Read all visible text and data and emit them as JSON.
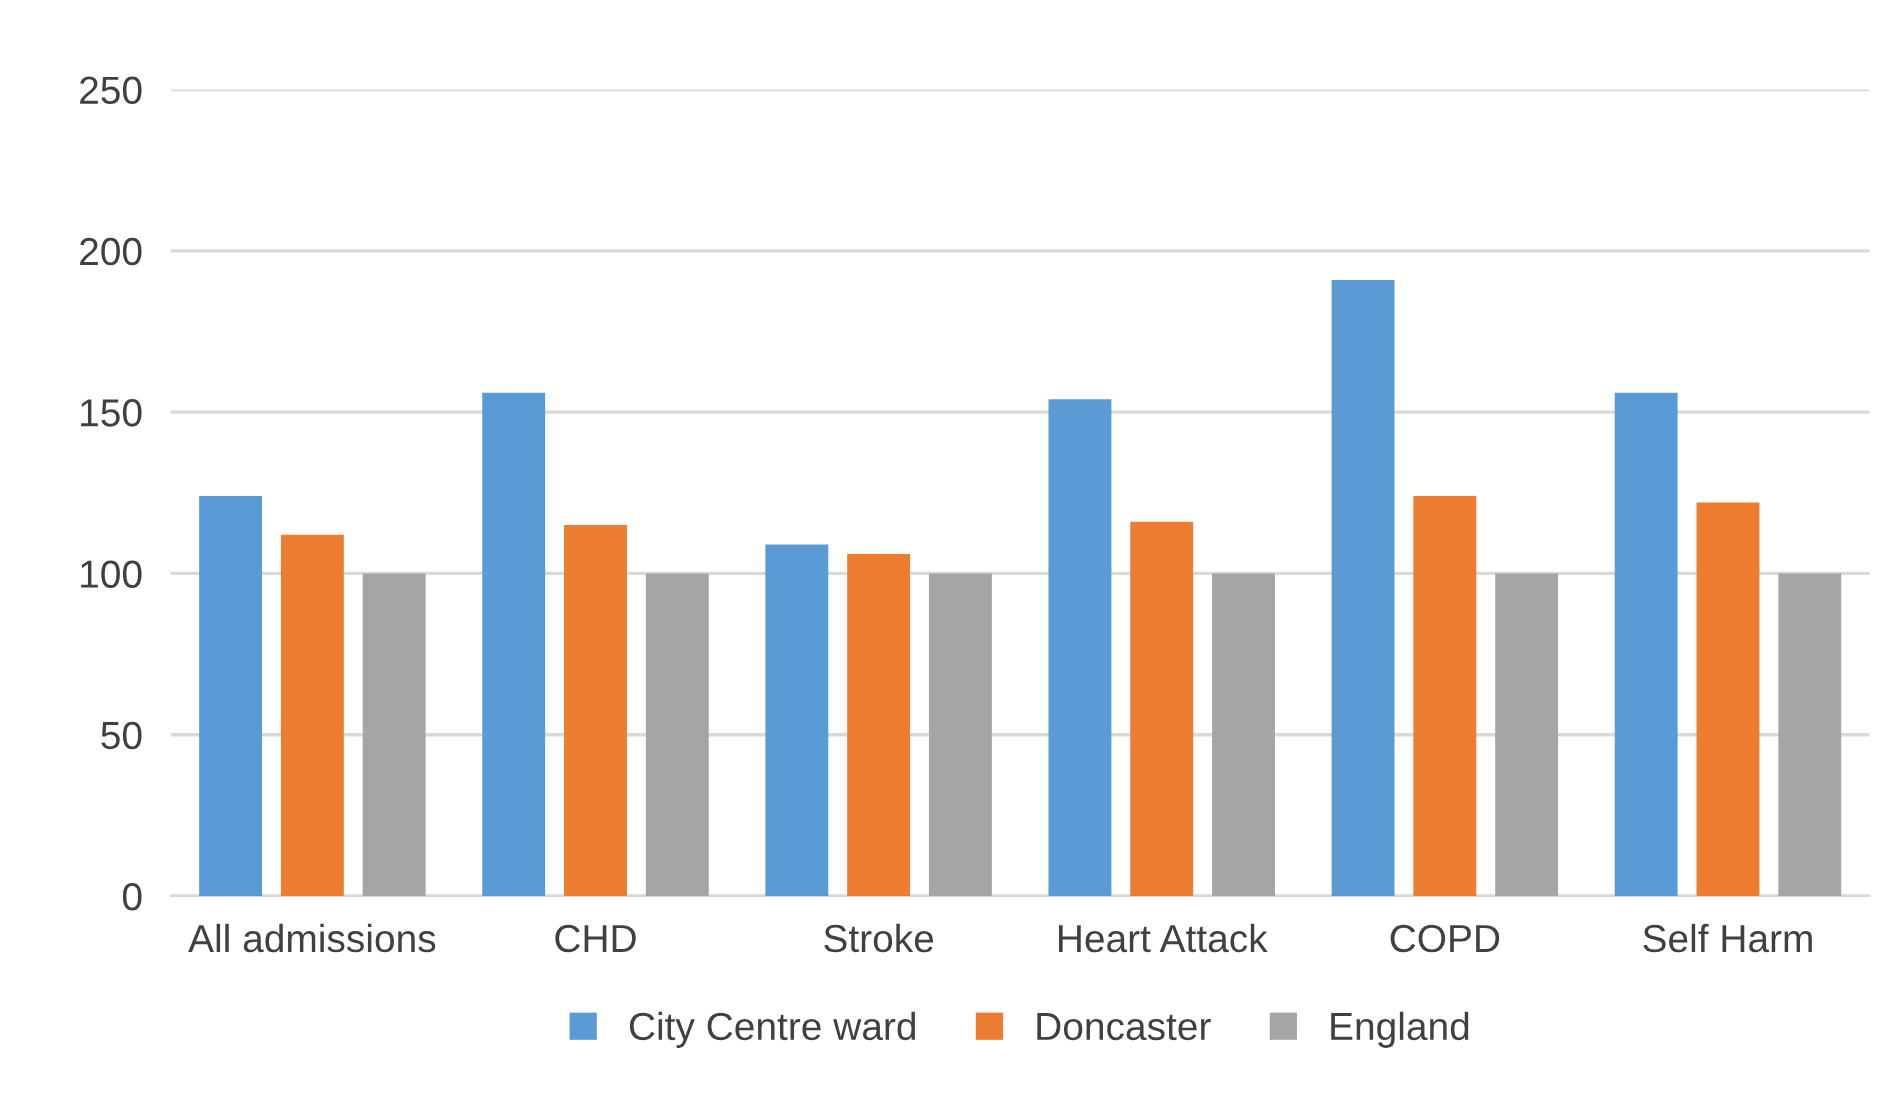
{
  "chart_data": {
    "type": "bar",
    "categories": [
      "All admissions",
      "CHD",
      "Stroke",
      "Heart Attack",
      "COPD",
      "Self Harm"
    ],
    "series": [
      {
        "name": "City Centre ward",
        "color": "#5b9bd5",
        "values": [
          124,
          156,
          109,
          154,
          191,
          156
        ]
      },
      {
        "name": "Doncaster",
        "color": "#ed7d31",
        "values": [
          112,
          115,
          106,
          116,
          124,
          122
        ]
      },
      {
        "name": "England",
        "color": "#a5a5a5",
        "values": [
          100,
          100,
          100,
          100,
          100,
          100
        ]
      }
    ],
    "ylim": [
      0,
      250
    ],
    "yticks": [
      0,
      50,
      100,
      150,
      200,
      250
    ],
    "grid": "y",
    "legend": "bottom"
  }
}
